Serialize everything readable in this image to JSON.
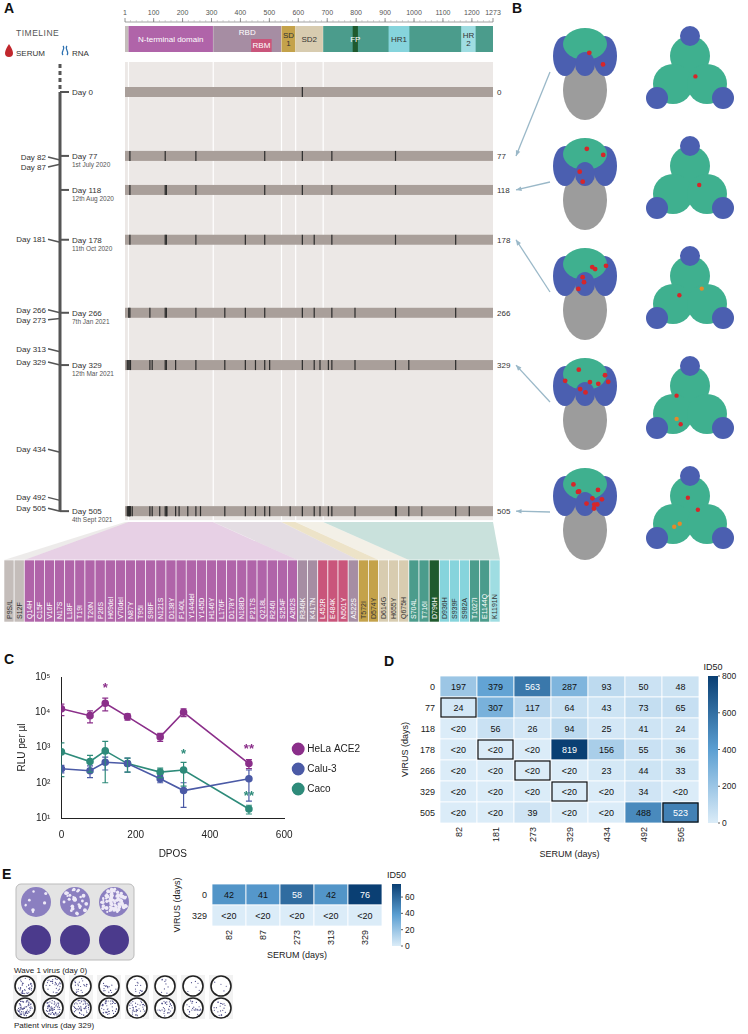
{
  "panel_labels": [
    "A",
    "B",
    "C",
    "D",
    "E"
  ],
  "timeline": {
    "title": "TIMELINE",
    "serum_label": "SERUM",
    "rna_label": "RNA",
    "ruler_ticks": [
      1,
      100,
      200,
      300,
      400,
      500,
      600,
      700,
      800,
      900,
      1000,
      1100,
      1200,
      1273
    ],
    "segments": [
      {
        "label": null,
        "start": 1,
        "end": 13,
        "color": "#c4bdba"
      },
      {
        "label": "N-terminal domain",
        "start": 13,
        "end": 305,
        "color": "#b064a9"
      },
      {
        "label": "RBD",
        "start": 306,
        "end": 541,
        "color": "#a68da3"
      },
      {
        "label": "RBM",
        "start": 437,
        "end": 508,
        "color": "#c9557b"
      },
      {
        "label": "SD 1",
        "start": 542,
        "end": 590,
        "color": "#c4a24a"
      },
      {
        "label": "SD2",
        "start": 591,
        "end": 685,
        "color": "#d8ccb0"
      },
      {
        "label": null,
        "start": 686,
        "end": 1273,
        "color": "#4b9c8c"
      },
      {
        "label": "FP",
        "start": 788,
        "end": 806,
        "color": "#1f5a2e"
      },
      {
        "label": "HR1",
        "start": 912,
        "end": 984,
        "color": "#86d4dc"
      },
      {
        "label": "HR 2",
        "start": 1163,
        "end": 1213,
        "color": "#9fdde2"
      }
    ],
    "serum_days": [
      {
        "day": 82,
        "label": "Day 82"
      },
      {
        "day": 87,
        "label": "Day 87"
      },
      {
        "day": 181,
        "label": "Day 181"
      },
      {
        "day": 266,
        "label": "Day 266"
      },
      {
        "day": 273,
        "label": "Day 273"
      },
      {
        "day": 313,
        "label": "Day 313"
      },
      {
        "day": 329,
        "label": "Day 329"
      },
      {
        "day": 434,
        "label": "Day 434"
      },
      {
        "day": 492,
        "label": "Day 492"
      },
      {
        "day": 505,
        "label": "Day 505"
      }
    ],
    "samples": [
      {
        "day": 0,
        "label": "Day 0",
        "date": null,
        "mutation_positions": [
          614
        ]
      },
      {
        "day": 77,
        "label": "Day 77",
        "date": "1st July 2020",
        "mutation_positions": [
          18,
          140,
          246,
          484,
          614,
          716,
          936
        ]
      },
      {
        "day": 118,
        "label": "Day 118",
        "date": "12th Aug 2020",
        "mutation_positions": [
          18,
          140,
          144,
          246,
          484,
          614,
          716,
          936
        ]
      },
      {
        "day": 178,
        "label": "Day 178",
        "date": "11th Oct 2020",
        "mutation_positions": [
          18,
          140,
          144,
          246,
          417,
          484,
          614,
          655,
          716,
          936,
          1144
        ]
      },
      {
        "day": 266,
        "label": "Day 266",
        "date": "7th Jan 2021",
        "mutation_positions": [
          14,
          18,
          87,
          140,
          144,
          246,
          346,
          417,
          484,
          614,
          655,
          716,
          796,
          936,
          1144
        ]
      },
      {
        "day": 329,
        "label": "Day 329",
        "date": "12th Mar 2021",
        "mutation_positions": [
          9,
          14,
          18,
          20,
          87,
          95,
          140,
          144,
          176,
          246,
          346,
          417,
          452,
          484,
          501,
          614,
          655,
          675,
          704,
          716,
          796,
          936,
          982,
          1144
        ]
      },
      {
        "day": 505,
        "label": "Day 505",
        "date": "4th Sept 2021",
        "mutation_positions": [
          9,
          12,
          14,
          15,
          17,
          18,
          20,
          26,
          87,
          95,
          121,
          140,
          144,
          146,
          176,
          188,
          218,
          246,
          262,
          346,
          417,
          452,
          484,
          501,
          572,
          614,
          655,
          675,
          704,
          716,
          796,
          936,
          939,
          982,
          1027,
          1144,
          1191
        ]
      }
    ],
    "structure_days": [
      77,
      118,
      178,
      329,
      505
    ],
    "mutations": [
      {
        "label": "P9S/L",
        "position": 9
      },
      {
        "label": "S12F",
        "position": 12
      },
      {
        "label": "Q14H",
        "position": 14
      },
      {
        "label": "C15F",
        "position": 15
      },
      {
        "label": "V16F",
        "position": 16
      },
      {
        "label": "N17S",
        "position": 17
      },
      {
        "label": "L18F",
        "position": 18
      },
      {
        "label": "T19I",
        "position": 19
      },
      {
        "label": "T20N",
        "position": 20
      },
      {
        "label": "P26S",
        "position": 26
      },
      {
        "label": "H69del",
        "position": 69
      },
      {
        "label": "V70del",
        "position": 70
      },
      {
        "label": "N87Y",
        "position": 87
      },
      {
        "label": "T95I",
        "position": 95
      },
      {
        "label": "S98F",
        "position": 98
      },
      {
        "label": "N121S",
        "position": 121
      },
      {
        "label": "D138Y",
        "position": 138
      },
      {
        "label": "F140L",
        "position": 140
      },
      {
        "label": "Y144del",
        "position": 144
      },
      {
        "label": "Y145D",
        "position": 145
      },
      {
        "label": "H146Y",
        "position": 146
      },
      {
        "label": "L176F",
        "position": 176
      },
      {
        "label": "D178Y",
        "position": 178
      },
      {
        "label": "N188D",
        "position": 188
      },
      {
        "label": "P217S",
        "position": 217
      },
      {
        "label": "Q218L",
        "position": 218
      },
      {
        "label": "R246I",
        "position": 246
      },
      {
        "label": "S254F",
        "position": 254
      },
      {
        "label": "A262S",
        "position": 262
      },
      {
        "label": "R346K",
        "position": 346
      },
      {
        "label": "K417N",
        "position": 417
      },
      {
        "label": "L452R",
        "position": 452
      },
      {
        "label": "E484K",
        "position": 484
      },
      {
        "label": "N501Y",
        "position": 501
      },
      {
        "label": "A522S",
        "position": 522
      },
      {
        "label": "T572I",
        "position": 572
      },
      {
        "label": "D574Y",
        "position": 574
      },
      {
        "label": "D614G",
        "position": 614
      },
      {
        "label": "H655Y",
        "position": 655
      },
      {
        "label": "Q675H",
        "position": 675
      },
      {
        "label": "S704L",
        "position": 704
      },
      {
        "label": "T716I",
        "position": 716
      },
      {
        "label": "D796H",
        "position": 796
      },
      {
        "label": "D936H",
        "position": 936
      },
      {
        "label": "S939F",
        "position": 939
      },
      {
        "label": "S982A",
        "position": 982
      },
      {
        "label": "T1027I",
        "position": 1027
      },
      {
        "label": "E1144Q",
        "position": 1144
      },
      {
        "label": "K1191N",
        "position": 1191
      }
    ]
  },
  "chart_data": [
    {
      "type": "line",
      "x_label": "DPOS",
      "y_label": "RLU per µl",
      "x": [
        0,
        77,
        118,
        178,
        266,
        329,
        505
      ],
      "series": [
        {
          "name": "HeLa ACE2",
          "color": "#8b2f8a",
          "values": [
            12500,
            8000,
            18000,
            7500,
            2000,
            10000,
            350
          ],
          "errors": [
            4500,
            3000,
            7000,
            1500,
            500,
            2500,
            100
          ]
        },
        {
          "name": "Calu-3",
          "color": "#4b5aa6",
          "values": [
            250,
            220,
            380,
            350,
            130,
            60,
            130
          ],
          "errors": [
            60,
            80,
            150,
            150,
            30,
            40,
            100
          ]
        },
        {
          "name": "Caco",
          "color": "#2e8b7a",
          "values": [
            750,
            400,
            800,
            350,
            200,
            230,
            18
          ],
          "errors": [
            600,
            200,
            700,
            150,
            60,
            150,
            5
          ]
        }
      ],
      "xlim": [
        0,
        600
      ],
      "xticks": [
        0,
        200,
        400,
        600
      ],
      "ylim": [
        10,
        100000
      ],
      "yticks": [
        {
          "value": 10,
          "label": "10¹"
        },
        {
          "value": 100,
          "label": "10²"
        },
        {
          "value": 1000,
          "label": "10³"
        },
        {
          "value": 10000,
          "label": "10⁴"
        },
        {
          "value": 100000,
          "label": "10⁵"
        }
      ],
      "log": "y",
      "grid": false,
      "legend": "right",
      "marker": "circle",
      "annotations": [
        {
          "text": "*",
          "x": 118,
          "y": 32000,
          "color": "#8b2f8a"
        },
        {
          "text": "*",
          "x": 329,
          "y": 420,
          "color": "#2e8b7a"
        },
        {
          "text": "**",
          "x": 505,
          "y": 560,
          "color": "#8b2f8a"
        },
        {
          "text": "**",
          "x": 505,
          "y": 26,
          "color": "#2e8b7a"
        }
      ]
    },
    {
      "type": "heatmap",
      "x_label": "SERUM (days)",
      "y_label": "VIRUS (days)",
      "columns": [
        "82",
        "181",
        "273",
        "329",
        "434",
        "492",
        "505"
      ],
      "rows": [
        "0",
        "77",
        "118",
        "178",
        "266",
        "329",
        "505"
      ],
      "values": [
        [
          197,
          379,
          563,
          287,
          93,
          50,
          48
        ],
        [
          24,
          307,
          117,
          64,
          43,
          73,
          65
        ],
        [
          null,
          56,
          26,
          94,
          25,
          41,
          24
        ],
        [
          null,
          null,
          null,
          819,
          156,
          55,
          36
        ],
        [
          null,
          null,
          null,
          null,
          23,
          44,
          33
        ],
        [
          null,
          null,
          null,
          null,
          null,
          34,
          null
        ],
        [
          null,
          null,
          39,
          null,
          null,
          488,
          523
        ]
      ],
      "value_labels": [
        [
          "197",
          "379",
          "563",
          "287",
          "93",
          "50",
          "48"
        ],
        [
          "24",
          "307",
          "117",
          "64",
          "43",
          "73",
          "65"
        ],
        [
          "<20",
          "56",
          "26",
          "94",
          "25",
          "41",
          "24"
        ],
        [
          "<20",
          "<20",
          "<20",
          "819",
          "156",
          "55",
          "36"
        ],
        [
          "<20",
          "<20",
          "<20",
          "<20",
          "23",
          "44",
          "33"
        ],
        [
          "<20",
          "<20",
          "<20",
          "<20",
          "<20",
          "34",
          "<20"
        ],
        [
          "<20",
          "<20",
          "39",
          "<20",
          "<20",
          "488",
          "523"
        ]
      ],
      "data_labels": true,
      "boxed": [
        {
          "row": "77",
          "column": "82"
        },
        {
          "row": "178",
          "column": "181"
        },
        {
          "row": "266",
          "column": "273"
        },
        {
          "row": "329",
          "column": "329"
        },
        {
          "row": "505",
          "column": "505"
        }
      ],
      "colorbar": {
        "label": "ID50",
        "lim": [
          0,
          800
        ],
        "ticks": [
          0,
          200,
          400,
          600,
          800
        ]
      }
    },
    {
      "type": "heatmap",
      "x_label": "SERUM (days)",
      "y_label": "VIRUS (days)",
      "columns": [
        "82",
        "87",
        "273",
        "313",
        "329"
      ],
      "rows": [
        "0",
        "329"
      ],
      "values": [
        [
          42,
          41,
          58,
          42,
          76
        ],
        [
          null,
          null,
          null,
          null,
          null
        ]
      ],
      "value_labels": [
        [
          "42",
          "41",
          "58",
          "42",
          "76"
        ],
        [
          "<20",
          "<20",
          "<20",
          "<20",
          "<20"
        ]
      ],
      "data_labels": true,
      "colorbar": {
        "label": "ID50",
        "lim": [
          0,
          76
        ],
        "ticks": [
          0,
          20,
          40,
          60
        ]
      }
    }
  ],
  "plaque_labels": [
    "Wave 1 virus (day 0)",
    "Patient virus (day 329)"
  ]
}
